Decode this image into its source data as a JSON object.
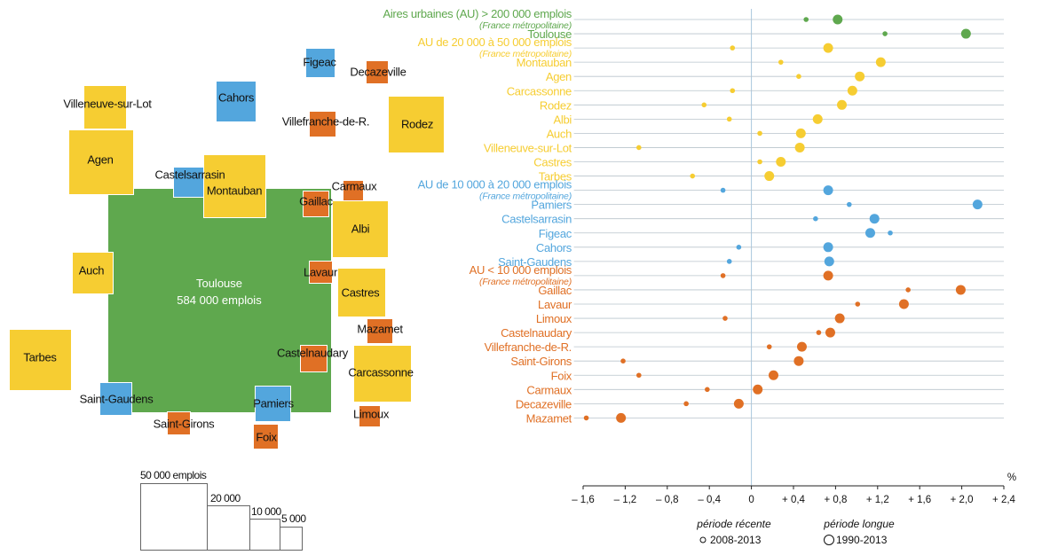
{
  "colors": {
    "green": "#5fa84e",
    "yellow": "#f6cd32",
    "blue": "#53a6dd",
    "orange": "#e07025",
    "grid": "#b9c4cc",
    "zero": "#a9c6dc"
  },
  "cartogram": {
    "center_name": "Toulouse",
    "center_value": "584 000 emplois",
    "areas": [
      {
        "name": "Figeac",
        "color": "blue"
      },
      {
        "name": "Decazeville",
        "color": "orange"
      },
      {
        "name": "Cahors",
        "color": "blue"
      },
      {
        "name": "Villeneuve-sur-Lot",
        "color": "yellow"
      },
      {
        "name": "Villefranche-de-R.",
        "color": "orange"
      },
      {
        "name": "Rodez",
        "color": "yellow"
      },
      {
        "name": "Agen",
        "color": "yellow"
      },
      {
        "name": "Castelsarrasin",
        "color": "blue"
      },
      {
        "name": "Montauban",
        "color": "yellow"
      },
      {
        "name": "Carmaux",
        "color": "orange"
      },
      {
        "name": "Gaillac",
        "color": "orange"
      },
      {
        "name": "Albi",
        "color": "yellow"
      },
      {
        "name": "Auch",
        "color": "yellow"
      },
      {
        "name": "Lavaur",
        "color": "orange"
      },
      {
        "name": "Castres",
        "color": "yellow"
      },
      {
        "name": "Mazamet",
        "color": "orange"
      },
      {
        "name": "Tarbes",
        "color": "yellow"
      },
      {
        "name": "Castelnaudary",
        "color": "orange"
      },
      {
        "name": "Carcassonne",
        "color": "yellow"
      },
      {
        "name": "Saint-Gaudens",
        "color": "blue"
      },
      {
        "name": "Pamiers",
        "color": "blue"
      },
      {
        "name": "Limoux",
        "color": "orange"
      },
      {
        "name": "Saint-Girons",
        "color": "orange"
      },
      {
        "name": "Foix",
        "color": "orange"
      }
    ]
  },
  "size_legend": [
    "50 000 emplois",
    "20 000",
    "10 000",
    "5 000"
  ],
  "chart_data": {
    "type": "scatter",
    "xlabel": "%",
    "xlim": [
      -1.6,
      2.4
    ],
    "xticks": [
      -1.6,
      -1.2,
      -0.8,
      -0.4,
      0,
      0.4,
      0.8,
      1.2,
      1.6,
      2.0,
      2.4
    ],
    "xtick_labels": [
      "– 1,6",
      "– 1,2",
      "– 0,8",
      "– 0,4",
      "0",
      "+ 0,4",
      "+ 0,8",
      "+ 1,2",
      "+ 1,6",
      "+ 2,0",
      "+ 2,4"
    ],
    "legend": {
      "small_title": "période récente",
      "small_label": "2008-2013",
      "large_title": "période longue",
      "large_label": "1990-2013"
    },
    "rows": [
      {
        "label": "Aires urbaines (AU) > 200 000 emplois",
        "sub": "(France métropolitaine)",
        "group": "green",
        "recent": 0.52,
        "long": 0.82
      },
      {
        "label": "Toulouse",
        "group": "green",
        "recent": 1.27,
        "long": 2.04
      },
      {
        "label": "AU de 20 000 à 50 000 emplois",
        "sub": "(France métropolitaine)",
        "group": "yellow",
        "recent": -0.18,
        "long": 0.73
      },
      {
        "label": "Montauban",
        "group": "yellow",
        "recent": 0.28,
        "long": 1.23
      },
      {
        "label": "Agen",
        "group": "yellow",
        "recent": 0.45,
        "long": 1.03
      },
      {
        "label": "Carcassonne",
        "group": "yellow",
        "recent": -0.18,
        "long": 0.96
      },
      {
        "label": "Rodez",
        "group": "yellow",
        "recent": -0.45,
        "long": 0.86
      },
      {
        "label": "Albi",
        "group": "yellow",
        "recent": -0.21,
        "long": 0.63
      },
      {
        "label": "Auch",
        "group": "yellow",
        "recent": 0.08,
        "long": 0.47
      },
      {
        "label": "Villeneuve-sur-Lot",
        "group": "yellow",
        "recent": -1.07,
        "long": 0.46
      },
      {
        "label": "Castres",
        "group": "yellow",
        "recent": 0.08,
        "long": 0.28
      },
      {
        "label": "Tarbes",
        "group": "yellow",
        "recent": -0.56,
        "long": 0.17
      },
      {
        "label": "AU de 10 000 à 20 000 emplois",
        "sub": "(France métropolitaine)",
        "group": "blue",
        "recent": -0.27,
        "long": 0.73
      },
      {
        "label": "Pamiers",
        "group": "blue",
        "recent": 0.93,
        "long": 2.15
      },
      {
        "label": "Castelsarrasin",
        "group": "blue",
        "recent": 0.61,
        "long": 1.17
      },
      {
        "label": "Figeac",
        "group": "blue",
        "recent": 1.32,
        "long": 1.13
      },
      {
        "label": "Cahors",
        "group": "blue",
        "recent": -0.12,
        "long": 0.73
      },
      {
        "label": "Saint-Gaudens",
        "group": "blue",
        "recent": -0.21,
        "long": 0.74
      },
      {
        "label": "AU < 10 000 emplois",
        "sub": "(France métropolitaine)",
        "group": "orange",
        "recent": -0.27,
        "long": 0.73
      },
      {
        "label": "Gaillac",
        "group": "orange",
        "recent": 1.49,
        "long": 1.99
      },
      {
        "label": "Lavaur",
        "group": "orange",
        "recent": 1.01,
        "long": 1.45
      },
      {
        "label": "Limoux",
        "group": "orange",
        "recent": -0.25,
        "long": 0.84
      },
      {
        "label": "Castelnaudary",
        "group": "orange",
        "recent": 0.64,
        "long": 0.75
      },
      {
        "label": "Villefranche-de-R.",
        "group": "orange",
        "recent": 0.17,
        "long": 0.48
      },
      {
        "label": "Saint-Girons",
        "group": "orange",
        "recent": -1.22,
        "long": 0.45
      },
      {
        "label": "Foix",
        "group": "orange",
        "recent": -1.07,
        "long": 0.21
      },
      {
        "label": "Carmaux",
        "group": "orange",
        "recent": -0.42,
        "long": 0.06
      },
      {
        "label": "Decazeville",
        "group": "orange",
        "recent": -0.62,
        "long": -0.12
      },
      {
        "label": "Mazamet",
        "group": "orange",
        "recent": -1.57,
        "long": -1.24
      }
    ]
  }
}
